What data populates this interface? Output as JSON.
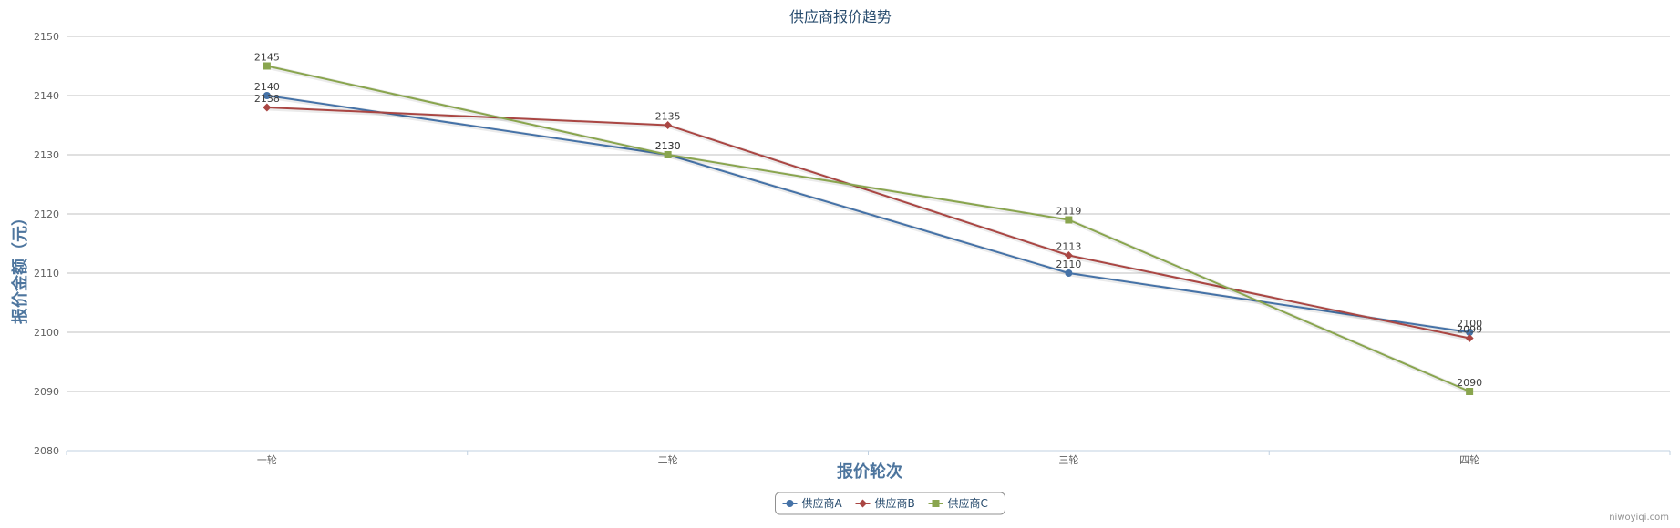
{
  "credit": "niwoyiqi.com",
  "chart_data": {
    "type": "line",
    "title": "供应商报价趋势",
    "xlabel": "报价轮次",
    "ylabel": "报价金额（元）",
    "categories": [
      "一轮",
      "二轮",
      "三轮",
      "四轮"
    ],
    "ylim": [
      2080,
      2150
    ],
    "yticks": [
      2080,
      2090,
      2100,
      2110,
      2120,
      2130,
      2140,
      2150
    ],
    "grid": true,
    "legend_position": "bottom-center",
    "series": [
      {
        "name": "供应商A",
        "color": "#4572a7",
        "marker": "circle",
        "values": [
          2140,
          2130,
          2110,
          2100
        ]
      },
      {
        "name": "供应商B",
        "color": "#aa4643",
        "marker": "diamond",
        "values": [
          2138,
          2135,
          2113,
          2099
        ]
      },
      {
        "name": "供应商C",
        "color": "#89a54e",
        "marker": "square",
        "values": [
          2145,
          2130,
          2119,
          2090
        ]
      }
    ]
  }
}
